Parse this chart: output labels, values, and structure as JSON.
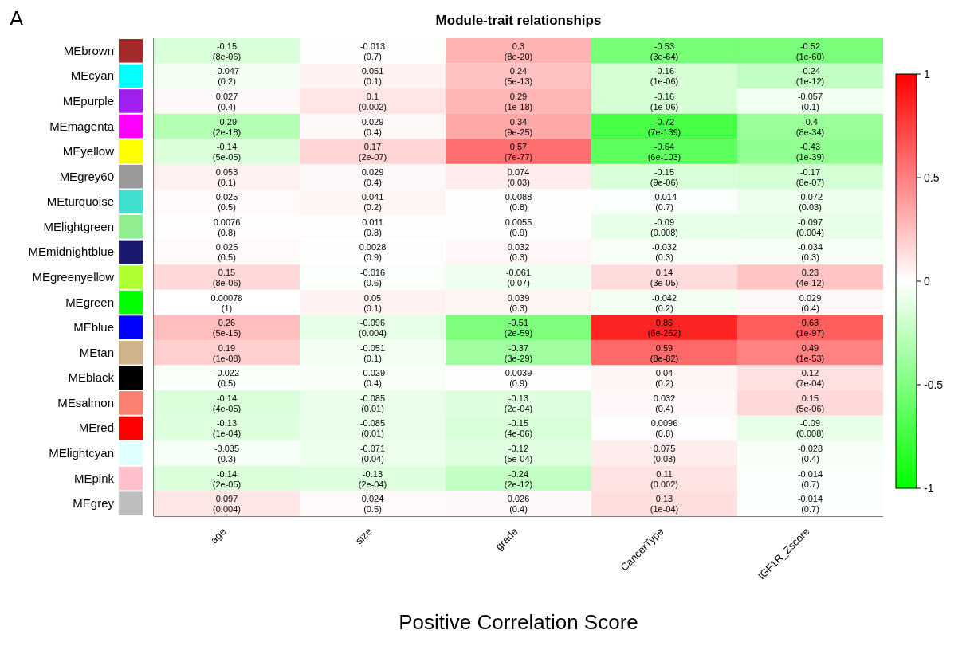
{
  "chart_data": {
    "type": "heatmap",
    "title": "Module-trait relationships",
    "xlabel": "Positive Correlation Score",
    "annotations": [
      "A"
    ],
    "categories": [
      "age",
      "size",
      "grade",
      "CancerType",
      "IGF1R_Zscore"
    ],
    "y_categories": [
      "MEbrown",
      "MEcyan",
      "MEpurple",
      "MEmagenta",
      "MEyellow",
      "MEgrey60",
      "MEturquoise",
      "MElightgreen",
      "MEmidnightblue",
      "MEgreenyellow",
      "MEgreen",
      "MEblue",
      "MEtan",
      "MEblack",
      "MEsalmon",
      "MEred",
      "MElightcyan",
      "MEpink",
      "MEgrey"
    ],
    "cells": [
      [
        -0.15,
        -0.013,
        0.3,
        -0.53,
        -0.52
      ],
      [
        -0.047,
        0.051,
        0.24,
        -0.16,
        -0.24
      ],
      [
        0.027,
        0.1,
        0.29,
        -0.16,
        -0.057
      ],
      [
        -0.29,
        0.029,
        0.34,
        -0.72,
        -0.4
      ],
      [
        -0.14,
        0.17,
        0.57,
        -0.64,
        -0.43
      ],
      [
        0.053,
        0.029,
        0.074,
        -0.15,
        -0.17
      ],
      [
        0.025,
        0.041,
        0.0088,
        -0.014,
        -0.072
      ],
      [
        0.0076,
        0.011,
        0.0055,
        -0.09,
        -0.097
      ],
      [
        0.025,
        0.0028,
        0.032,
        -0.032,
        -0.034
      ],
      [
        0.15,
        -0.016,
        -0.061,
        0.14,
        0.23
      ],
      [
        0.00078,
        0.05,
        0.039,
        -0.042,
        0.029
      ],
      [
        0.26,
        -0.096,
        -0.51,
        0.86,
        0.63
      ],
      [
        0.19,
        -0.051,
        -0.37,
        0.59,
        0.49
      ],
      [
        -0.022,
        -0.029,
        0.0039,
        0.04,
        0.12
      ],
      [
        -0.14,
        -0.085,
        -0.13,
        0.032,
        0.15
      ],
      [
        -0.13,
        -0.085,
        -0.15,
        0.0096,
        -0.09
      ],
      [
        -0.035,
        -0.071,
        -0.12,
        0.075,
        -0.028
      ],
      [
        -0.14,
        -0.13,
        -0.24,
        0.11,
        -0.014
      ],
      [
        0.097,
        0.024,
        0.026,
        0.13,
        -0.014
      ]
    ],
    "cell_labels": [
      [
        "-0.15\n(8e-06)",
        "-0.013\n(0.7)",
        "0.3\n(8e-20)",
        "-0.53\n(3e-64)",
        "-0.52\n(1e-60)"
      ],
      [
        "-0.047\n(0.2)",
        "0.051\n(0.1)",
        "0.24\n(5e-13)",
        "-0.16\n(1e-06)",
        "-0.24\n(1e-12)"
      ],
      [
        "0.027\n(0.4)",
        "0.1\n(0.002)",
        "0.29\n(1e-18)",
        "-0.16\n(1e-06)",
        "-0.057\n(0.1)"
      ],
      [
        "-0.29\n(2e-18)",
        "0.029\n(0.4)",
        "0.34\n(9e-25)",
        "-0.72\n(7e-139)",
        "-0.4\n(8e-34)"
      ],
      [
        "-0.14\n(5e-05)",
        "0.17\n(2e-07)",
        "0.57\n(7e-77)",
        "-0.64\n(6e-103)",
        "-0.43\n(1e-39)"
      ],
      [
        "0.053\n(0.1)",
        "0.029\n(0.4)",
        "0.074\n(0.03)",
        "-0.15\n(9e-06)",
        "-0.17\n(8e-07)"
      ],
      [
        "0.025\n(0.5)",
        "0.041\n(0.2)",
        "0.0088\n(0.8)",
        "-0.014\n(0.7)",
        "-0.072\n(0.03)"
      ],
      [
        "0.0076\n(0.8)",
        "0.011\n(0.8)",
        "0.0055\n(0.9)",
        "-0.09\n(0.008)",
        "-0.097\n(0.004)"
      ],
      [
        "0.025\n(0.5)",
        "0.0028\n(0.9)",
        "0.032\n(0.3)",
        "-0.032\n(0.3)",
        "-0.034\n(0.3)"
      ],
      [
        "0.15\n(8e-06)",
        "-0.016\n(0.6)",
        "-0.061\n(0.07)",
        "0.14\n(3e-05)",
        "0.23\n(4e-12)"
      ],
      [
        "0.00078\n(1)",
        "0.05\n(0.1)",
        "0.039\n(0.3)",
        "-0.042\n(0.2)",
        "0.029\n(0.4)"
      ],
      [
        "0.26\n(5e-15)",
        "-0.096\n(0.004)",
        "-0.51\n(2e-59)",
        "0.86\n(6e-252)",
        "0.63\n(1e-97)"
      ],
      [
        "0.19\n(1e-08)",
        "-0.051\n(0.1)",
        "-0.37\n(3e-29)",
        "0.59\n(8e-82)",
        "0.49\n(1e-53)"
      ],
      [
        "-0.022\n(0.5)",
        "-0.029\n(0.4)",
        "0.0039\n(0.9)",
        "0.04\n(0.2)",
        "0.12\n(7e-04)"
      ],
      [
        "-0.14\n(4e-05)",
        "-0.085\n(0.01)",
        "-0.13\n(2e-04)",
        "0.032\n(0.4)",
        "0.15\n(5e-06)"
      ],
      [
        "-0.13\n(1e-04)",
        "-0.085\n(0.01)",
        "-0.15\n(4e-06)",
        "0.0096\n(0.8)",
        "-0.09\n(0.008)"
      ],
      [
        "-0.035\n(0.3)",
        "-0.071\n(0.04)",
        "-0.12\n(5e-04)",
        "0.075\n(0.03)",
        "-0.028\n(0.4)"
      ],
      [
        "-0.14\n(2e-05)",
        "-0.13\n(2e-04)",
        "-0.24\n(2e-12)",
        "0.11\n(0.002)",
        "-0.014\n(0.7)"
      ],
      [
        "0.097\n(0.004)",
        "0.024\n(0.5)",
        "0.026\n(0.4)",
        "0.13\n(1e-04)",
        "-0.014\n(0.7)"
      ]
    ],
    "clim": [
      -1,
      1
    ],
    "cticks": [
      -1,
      -0.5,
      0,
      0.5,
      1
    ]
  }
}
